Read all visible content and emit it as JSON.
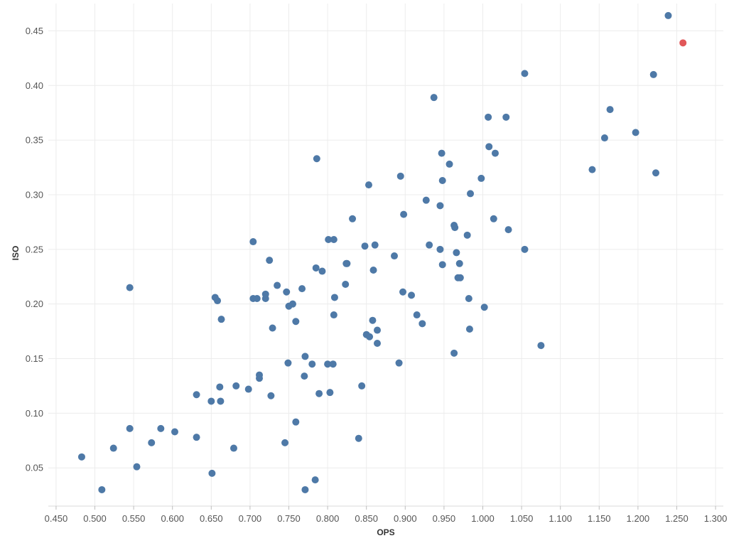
{
  "chart_data": {
    "type": "scatter",
    "title": "",
    "xlabel": "OPS",
    "ylabel": "ISO",
    "xlim": [
      0.44,
      1.31
    ],
    "ylim": [
      0.015,
      0.475
    ],
    "x_ticks": [
      "0.450",
      "0.500",
      "0.550",
      "0.600",
      "0.650",
      "0.700",
      "0.750",
      "0.800",
      "0.850",
      "0.900",
      "0.950",
      "1.000",
      "1.050",
      "1.100",
      "1.150",
      "1.200",
      "1.250",
      "1.300"
    ],
    "y_ticks": [
      "0.05",
      "0.10",
      "0.15",
      "0.20",
      "0.25",
      "0.30",
      "0.35",
      "0.40",
      "0.45"
    ],
    "grid": true,
    "colors": {
      "default": "#4e79a7",
      "highlight": "#e15759"
    },
    "series": [
      {
        "points": [
          [
            0.483,
            0.06
          ],
          [
            0.509,
            0.03
          ],
          [
            0.524,
            0.068
          ],
          [
            0.545,
            0.086
          ],
          [
            0.545,
            0.215
          ],
          [
            0.554,
            0.051
          ],
          [
            0.573,
            0.073
          ],
          [
            0.585,
            0.086
          ],
          [
            0.603,
            0.083
          ],
          [
            0.631,
            0.117
          ],
          [
            0.631,
            0.078
          ],
          [
            0.65,
            0.111
          ],
          [
            0.651,
            0.045
          ],
          [
            0.655,
            0.206
          ],
          [
            0.658,
            0.203
          ],
          [
            0.661,
            0.124
          ],
          [
            0.662,
            0.111
          ],
          [
            0.663,
            0.186
          ],
          [
            0.679,
            0.068
          ],
          [
            0.682,
            0.125
          ],
          [
            0.698,
            0.122
          ],
          [
            0.704,
            0.257
          ],
          [
            0.704,
            0.205
          ],
          [
            0.709,
            0.205
          ],
          [
            0.712,
            0.135
          ],
          [
            0.712,
            0.132
          ],
          [
            0.72,
            0.205
          ],
          [
            0.72,
            0.209
          ],
          [
            0.725,
            0.24
          ],
          [
            0.727,
            0.116
          ],
          [
            0.729,
            0.178
          ],
          [
            0.735,
            0.217
          ],
          [
            0.745,
            0.073
          ],
          [
            0.747,
            0.211
          ],
          [
            0.749,
            0.146
          ],
          [
            0.75,
            0.198
          ],
          [
            0.755,
            0.2
          ],
          [
            0.759,
            0.092
          ],
          [
            0.759,
            0.184
          ],
          [
            0.767,
            0.214
          ],
          [
            0.77,
            0.134
          ],
          [
            0.771,
            0.152
          ],
          [
            0.771,
            0.03
          ],
          [
            0.78,
            0.145
          ],
          [
            0.784,
            0.039
          ],
          [
            0.785,
            0.233
          ],
          [
            0.786,
            0.333
          ],
          [
            0.789,
            0.118
          ],
          [
            0.793,
            0.23
          ],
          [
            0.8,
            0.145
          ],
          [
            0.801,
            0.259
          ],
          [
            0.803,
            0.119
          ],
          [
            0.807,
            0.145
          ],
          [
            0.808,
            0.259
          ],
          [
            0.808,
            0.19
          ],
          [
            0.809,
            0.206
          ],
          [
            0.823,
            0.218
          ],
          [
            0.824,
            0.237
          ],
          [
            0.825,
            0.237
          ],
          [
            0.832,
            0.278
          ],
          [
            0.84,
            0.077
          ],
          [
            0.844,
            0.125
          ],
          [
            0.848,
            0.253
          ],
          [
            0.85,
            0.172
          ],
          [
            0.853,
            0.309
          ],
          [
            0.854,
            0.17
          ],
          [
            0.858,
            0.185
          ],
          [
            0.859,
            0.231
          ],
          [
            0.861,
            0.254
          ],
          [
            0.864,
            0.176
          ],
          [
            0.864,
            0.164
          ],
          [
            0.886,
            0.244
          ],
          [
            0.892,
            0.146
          ],
          [
            0.894,
            0.317
          ],
          [
            0.897,
            0.211
          ],
          [
            0.898,
            0.282
          ],
          [
            0.908,
            0.208
          ],
          [
            0.915,
            0.19
          ],
          [
            0.922,
            0.182
          ],
          [
            0.927,
            0.295
          ],
          [
            0.931,
            0.254
          ],
          [
            0.937,
            0.389
          ],
          [
            0.945,
            0.25
          ],
          [
            0.945,
            0.29
          ],
          [
            0.947,
            0.338
          ],
          [
            0.948,
            0.313
          ],
          [
            0.948,
            0.236
          ],
          [
            0.957,
            0.328
          ],
          [
            0.963,
            0.155
          ],
          [
            0.963,
            0.272
          ],
          [
            0.964,
            0.27
          ],
          [
            0.966,
            0.247
          ],
          [
            0.968,
            0.224
          ],
          [
            0.97,
            0.237
          ],
          [
            0.971,
            0.224
          ],
          [
            0.98,
            0.263
          ],
          [
            0.982,
            0.205
          ],
          [
            0.983,
            0.177
          ],
          [
            0.984,
            0.301
          ],
          [
            0.998,
            0.315
          ],
          [
            1.002,
            0.197
          ],
          [
            1.007,
            0.371
          ],
          [
            1.008,
            0.344
          ],
          [
            1.014,
            0.278
          ],
          [
            1.016,
            0.338
          ],
          [
            1.03,
            0.371
          ],
          [
            1.033,
            0.268
          ],
          [
            1.054,
            0.411
          ],
          [
            1.054,
            0.25
          ],
          [
            1.075,
            0.162
          ],
          [
            1.141,
            0.323
          ],
          [
            1.157,
            0.352
          ],
          [
            1.164,
            0.378
          ],
          [
            1.197,
            0.357
          ],
          [
            1.22,
            0.41
          ],
          [
            1.223,
            0.32
          ],
          [
            1.239,
            0.464
          ]
        ]
      },
      {
        "highlight": true,
        "points": [
          [
            1.258,
            0.439
          ]
        ]
      }
    ]
  }
}
